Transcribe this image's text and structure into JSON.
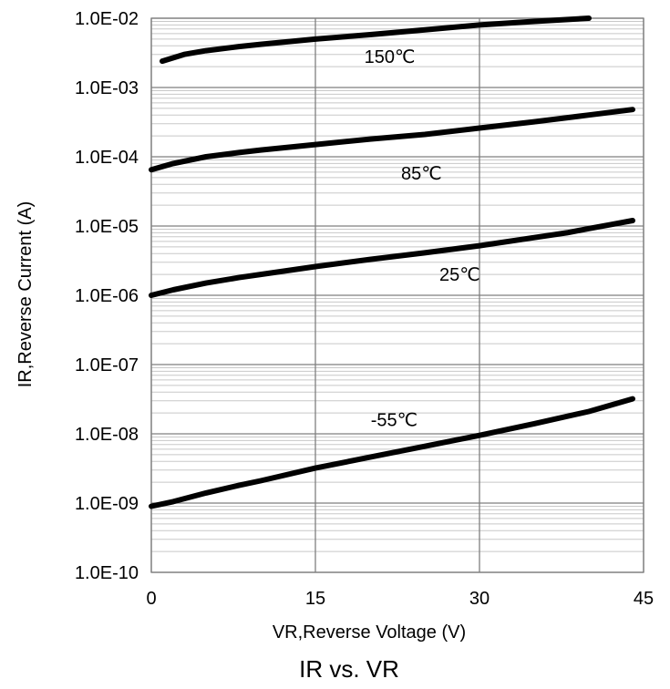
{
  "chart_data": {
    "type": "line",
    "title": "IR vs. VR",
    "xlabel": "VR,Reverse Voltage (V)",
    "ylabel": "IR,Reverse Current (A)",
    "xlim": [
      0,
      45
    ],
    "ylim": [
      1e-10,
      0.01
    ],
    "yscale": "log",
    "grid": true,
    "legend": "none",
    "x_ticks": [
      "0",
      "15",
      "30",
      "45"
    ],
    "y_ticks": [
      "1.0E-10",
      "1.0E-09",
      "1.0E-08",
      "1.0E-07",
      "1.0E-06",
      "1.0E-05",
      "1.0E-04",
      "1.0E-03",
      "1.0E-02"
    ],
    "series": [
      {
        "label": "150℃",
        "x": [
          1,
          3,
          5,
          8,
          10,
          15,
          20,
          25,
          30,
          35,
          40
        ],
        "y": [
          0.0024,
          0.003,
          0.0034,
          0.0039,
          0.0042,
          0.005,
          0.0058,
          0.0068,
          0.008,
          0.009,
          0.01
        ]
      },
      {
        "label": "85℃",
        "x": [
          0,
          2,
          5,
          8,
          10,
          15,
          20,
          25,
          30,
          35,
          40,
          44
        ],
        "y": [
          6.5e-05,
          8e-05,
          0.0001,
          0.000115,
          0.000125,
          0.00015,
          0.00018,
          0.00021,
          0.00026,
          0.00032,
          0.0004,
          0.00048
        ]
      },
      {
        "label": "25℃",
        "x": [
          0,
          2,
          5,
          8,
          10,
          15,
          20,
          25,
          30,
          35,
          38,
          40,
          42,
          44
        ],
        "y": [
          1e-06,
          1.2e-06,
          1.5e-06,
          1.8e-06,
          2e-06,
          2.6e-06,
          3.3e-06,
          4.1e-06,
          5.2e-06,
          6.8e-06,
          8e-06,
          9.2e-06,
          1.05e-05,
          1.2e-05
        ]
      },
      {
        "label": "-55℃",
        "x": [
          0,
          2,
          5,
          8,
          10,
          15,
          20,
          25,
          30,
          35,
          40,
          44
        ],
        "y": [
          9e-10,
          1.05e-09,
          1.4e-09,
          1.8e-09,
          2.1e-09,
          3.2e-09,
          4.6e-09,
          6.6e-09,
          9.5e-09,
          1.4e-08,
          2.1e-08,
          3.2e-08
        ]
      }
    ]
  }
}
